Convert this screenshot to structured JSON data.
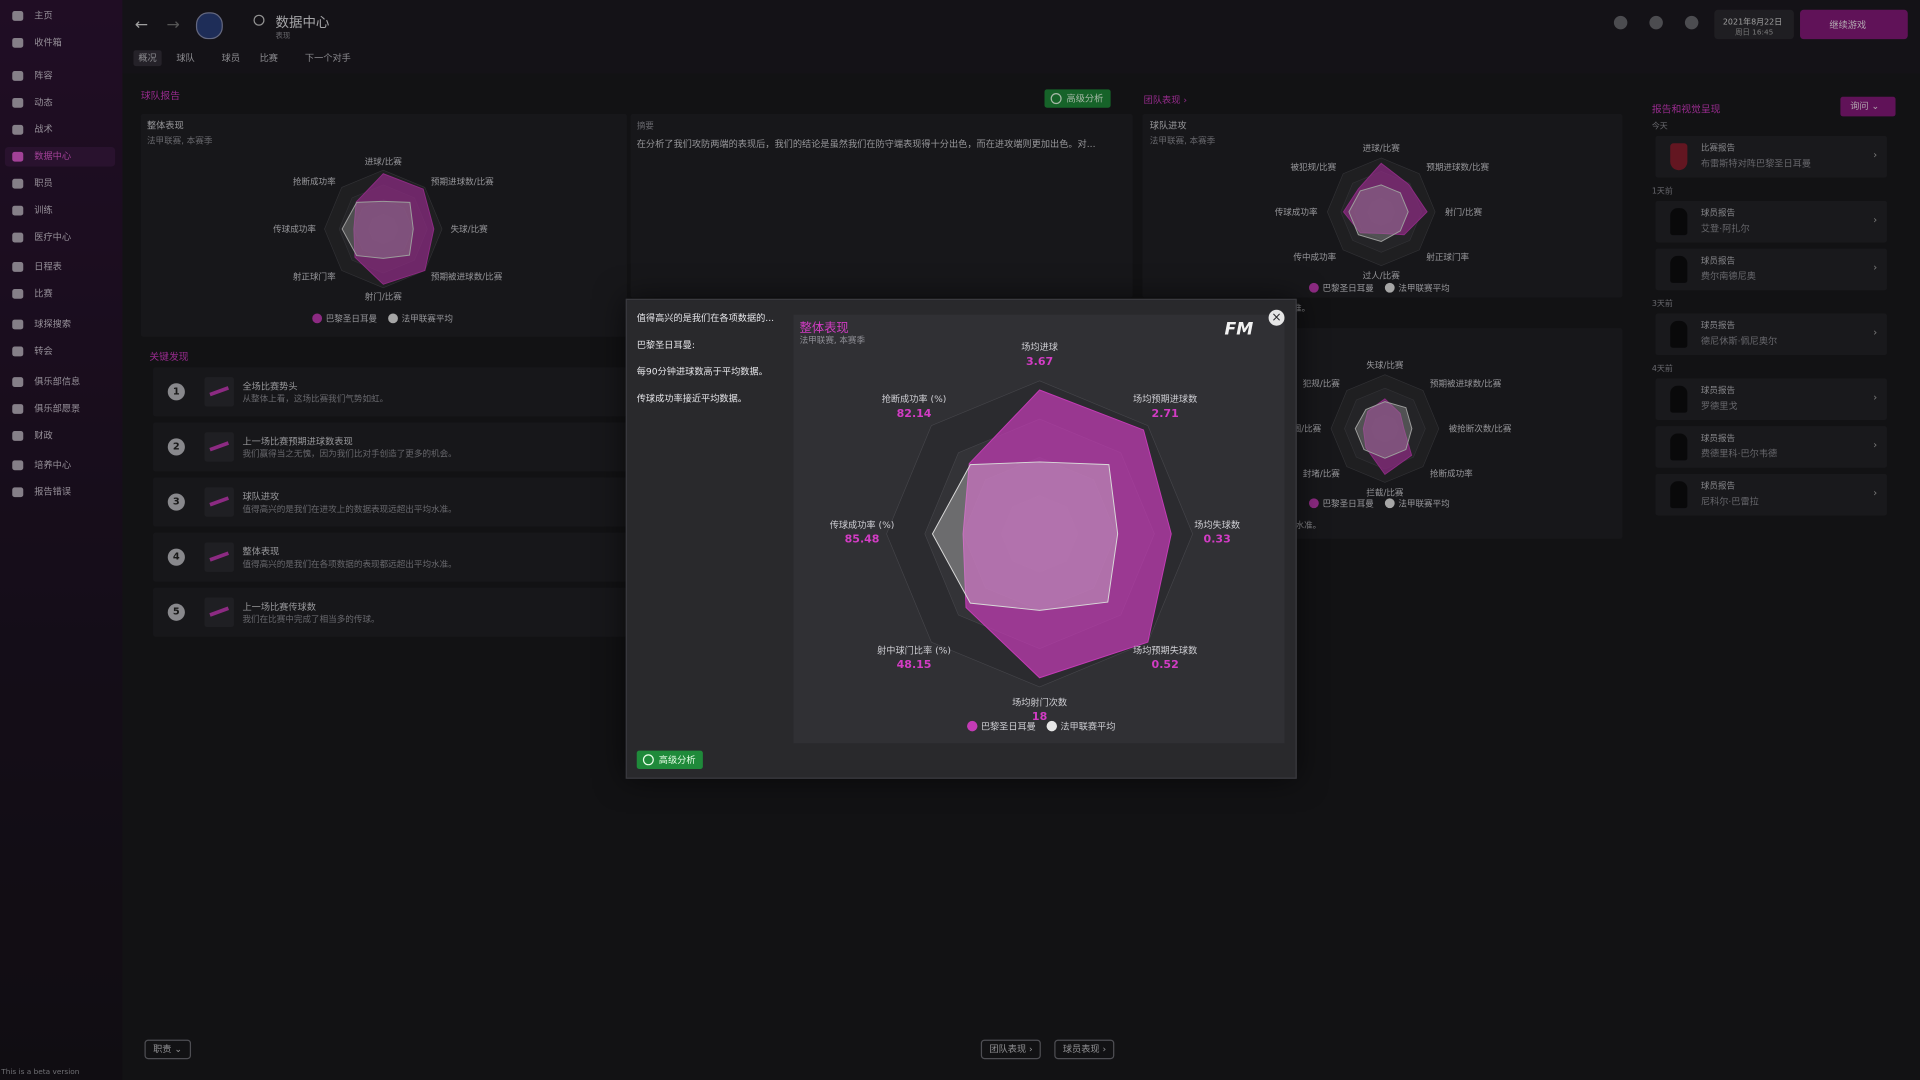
{
  "sidebar": {
    "items": [
      "主页",
      "收件箱",
      "阵容",
      "动态",
      "战术",
      "数据中心",
      "职员",
      "训练",
      "医疗中心",
      "日程表",
      "比赛",
      "球探搜索",
      "转会",
      "俱乐部信息",
      "俱乐部愿景",
      "财政",
      "培养中心",
      "报告错误"
    ],
    "active_item": 5
  },
  "topbar": {
    "title": "数据中心",
    "subtitle": "表现",
    "date": "2021年8月22日",
    "time": "周日 16:45",
    "continue": "继续游戏"
  },
  "tabs": [
    "概况",
    "球队",
    "球员",
    "比赛",
    "下一个对手"
  ],
  "left": {
    "section": "球队报告",
    "findings_title": "关键发现",
    "findings": [
      {
        "number": 1,
        "title": "全场比赛势头",
        "desc": "从整体上看，这场比赛我们气势如虹。"
      },
      {
        "number": 2,
        "title": "上一场比赛预期进球数表现",
        "desc": "我们赢得当之无愧，因为我们比对手创造了更多的机会。"
      },
      {
        "number": 3,
        "title": "球队进攻",
        "desc": "值得高兴的是我们在进攻上的数据表现远超出平均水准。"
      },
      {
        "number": 4,
        "title": "整体表现",
        "desc": "值得高兴的是我们在各项数据的表现都远超出平均水准。"
      },
      {
        "number": 5,
        "title": "上一场比赛传球数",
        "desc": "我们在比赛中完成了相当多的传球。"
      }
    ]
  },
  "summary": {
    "title": "摘要",
    "text": "在分析了我们攻防两端的表现后，我们的结论是虽然我们在防守端表现得十分出色，而在进攻端则更加出色。对..."
  },
  "advanced_button": "高级分析",
  "right": {
    "link": "团队表现",
    "attack_note": "表现远超出平均水准。",
    "defense_note": "水准。"
  },
  "reports": {
    "title": "报告和视觉呈现",
    "ask": "询问",
    "groups": [
      {
        "label": "今天",
        "items": [
          {
            "type": "比赛报告",
            "name": "布雷斯特对阵巴黎圣日耳曼"
          }
        ]
      },
      {
        "label": "1天前",
        "items": [
          {
            "type": "球员报告",
            "name": "艾登·阿扎尔"
          },
          {
            "type": "球员报告",
            "name": "费尔南德尼奥"
          }
        ]
      },
      {
        "label": "3天前",
        "items": [
          {
            "type": "球员报告",
            "name": "德尼休斯·佩尼奥尔"
          }
        ]
      },
      {
        "label": "4天前",
        "items": [
          {
            "type": "球员报告",
            "name": "罗德里戈"
          },
          {
            "type": "球员报告",
            "name": "费德里科·巴尔韦德"
          },
          {
            "type": "球员报告",
            "name": "尼科尔·巴雷拉"
          }
        ]
      }
    ]
  },
  "footer": {
    "role": "职责",
    "team_button": "团队表现",
    "player_button": "球员表现",
    "beta": "This is a beta version"
  },
  "modal": {
    "lines": [
      "值得高兴的是我们在各项数据的...",
      "巴黎圣日耳曼:",
      "每90分钟进球数高于平均数据。",
      "传球成功率接近平均数据。"
    ],
    "logo": "FM",
    "button": "高级分析"
  },
  "chart_data": [
    {
      "type": "radar",
      "title": "整体表现",
      "subtitle": "法甲联赛, 本赛季",
      "categories": [
        "场均进球",
        "场均预期进球数",
        "场均失球数",
        "场均预期失球数",
        "场均射门次数",
        "射中球门比率 (%)",
        "传球成功率 (%)",
        "抢断成功率 (%)"
      ],
      "stats": [
        3.67,
        2.71,
        0.33,
        0.52,
        18,
        48.15,
        85.48,
        82.14
      ],
      "rlim": [
        0,
        100
      ],
      "rticks": [
        25,
        50,
        75,
        100
      ],
      "series": [
        {
          "name": "巴黎圣日耳曼",
          "color": "#c33bb5",
          "values": [
            94,
            96,
            86,
            100,
            94,
            68,
            50,
            65
          ]
        },
        {
          "name": "法甲联赛平均",
          "color": "#d8d8d8",
          "values": [
            47,
            64,
            51,
            63,
            50,
            64,
            70,
            64
          ]
        }
      ]
    },
    {
      "type": "radar",
      "title": "整体表现",
      "subtitle": "法甲联赛, 本赛季",
      "categories": [
        "进球/比赛",
        "预期进球数/比赛",
        "失球/比赛",
        "预期被进球数/比赛",
        "射门/比赛",
        "射正球门率",
        "传球成功率",
        "抢断成功率"
      ],
      "rlim": [
        0,
        100
      ],
      "rticks": [
        25,
        50,
        75,
        100
      ],
      "series": [
        {
          "name": "巴黎圣日耳曼",
          "color": "#c33bb5",
          "values": [
            94,
            96,
            86,
            100,
            94,
            68,
            50,
            65
          ]
        },
        {
          "name": "法甲联赛平均",
          "color": "#d8d8d8",
          "values": [
            47,
            64,
            51,
            63,
            50,
            64,
            70,
            64
          ]
        }
      ]
    },
    {
      "type": "radar",
      "title": "球队进攻",
      "subtitle": "法甲联赛, 本赛季",
      "categories": [
        "进球/比赛",
        "预期进球数/比赛",
        "射门/比赛",
        "射正球门率",
        "过人/比赛",
        "传中成功率",
        "传球成功率",
        "被犯规/比赛"
      ],
      "rlim": [
        0,
        100
      ],
      "rticks": [
        25,
        50,
        75,
        100
      ],
      "series": [
        {
          "name": "巴黎圣日耳曼",
          "color": "#c33bb5",
          "values": [
            90,
            72,
            85,
            60,
            40,
            55,
            70,
            60
          ]
        },
        {
          "name": "法甲联赛平均",
          "color": "#d8d8d8",
          "values": [
            50,
            50,
            50,
            50,
            55,
            60,
            60,
            55
          ]
        }
      ]
    },
    {
      "type": "radar",
      "categories": [
        "失球/比赛",
        "预期被进球数/比赛",
        "被抢断次数/比赛",
        "抢断成功率",
        "拦截/比赛",
        "封堵/比赛",
        "解围/比赛",
        "犯规/比赛"
      ],
      "rlim": [
        0,
        100
      ],
      "rticks": [
        25,
        50,
        75,
        100
      ],
      "series": [
        {
          "name": "巴黎圣日耳曼",
          "color": "#c33bb5",
          "values": [
            55,
            40,
            35,
            70,
            85,
            50,
            40,
            45
          ]
        },
        {
          "name": "法甲联赛平均",
          "color": "#d8d8d8",
          "values": [
            50,
            55,
            50,
            55,
            55,
            55,
            55,
            50
          ]
        }
      ]
    }
  ]
}
